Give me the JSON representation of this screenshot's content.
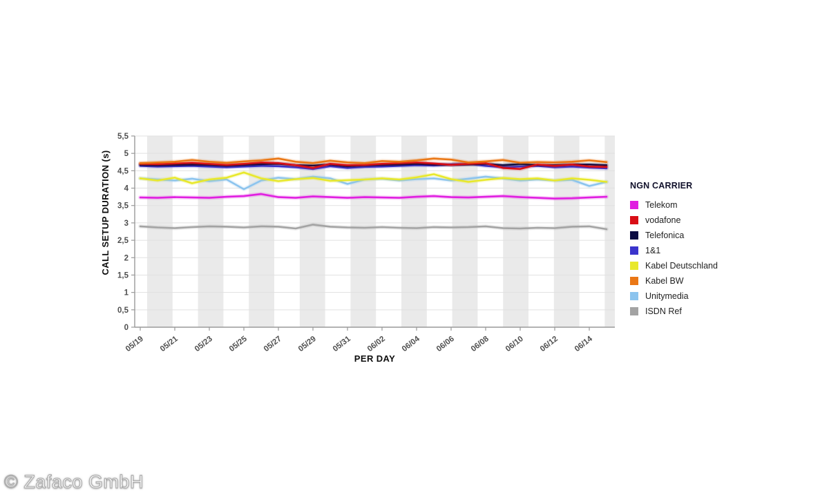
{
  "watermark": "© Zafaco GmbH",
  "chart_data": {
    "type": "line",
    "title": "",
    "xlabel": "PER DAY",
    "ylabel": "CALL SETUP DURATION (s)",
    "ylim": [
      0,
      5.5
    ],
    "ytick_step": 0.5,
    "ytick_labels": [
      "0",
      "0,5",
      "1",
      "1,5",
      "2",
      "2,5",
      "3",
      "3,5",
      "4",
      "4,5",
      "5",
      "5,5"
    ],
    "grid": true,
    "plot_band_color": "#eaeaea",
    "axis_color": "#999999",
    "legend_title": "NGN CARRIER",
    "legend_position": "right",
    "x": [
      "05/19",
      "05/20",
      "05/21",
      "05/22",
      "05/23",
      "05/24",
      "05/25",
      "05/26",
      "05/27",
      "05/28",
      "05/29",
      "05/30",
      "05/31",
      "06/01",
      "06/02",
      "06/03",
      "06/04",
      "06/05",
      "06/06",
      "06/07",
      "06/08",
      "06/09",
      "06/10",
      "06/11",
      "06/12",
      "06/13",
      "06/14",
      "06/15"
    ],
    "xtick_labels": [
      "05/19",
      "05/21",
      "05/23",
      "05/25",
      "05/27",
      "05/29",
      "05/31",
      "06/02",
      "06/04",
      "06/06",
      "06/08",
      "06/10",
      "06/12",
      "06/14"
    ],
    "series": [
      {
        "name": "Telekom",
        "color": "#E01EE0",
        "values": [
          3.73,
          3.72,
          3.74,
          3.73,
          3.72,
          3.75,
          3.77,
          3.83,
          3.74,
          3.72,
          3.76,
          3.74,
          3.72,
          3.74,
          3.73,
          3.72,
          3.75,
          3.77,
          3.74,
          3.73,
          3.75,
          3.77,
          3.74,
          3.72,
          3.7,
          3.71,
          3.73,
          3.75
        ]
      },
      {
        "name": "vodafone",
        "color": "#D90E16",
        "values": [
          4.7,
          4.69,
          4.71,
          4.73,
          4.7,
          4.67,
          4.7,
          4.74,
          4.72,
          4.66,
          4.58,
          4.7,
          4.66,
          4.67,
          4.7,
          4.72,
          4.74,
          4.71,
          4.67,
          4.7,
          4.72,
          4.58,
          4.55,
          4.68,
          4.64,
          4.68,
          4.62,
          4.61
        ]
      },
      {
        "name": "Telefonica",
        "color": "#0B0B42",
        "values": [
          4.67,
          4.66,
          4.67,
          4.68,
          4.67,
          4.65,
          4.67,
          4.69,
          4.7,
          4.66,
          4.65,
          4.68,
          4.63,
          4.66,
          4.67,
          4.68,
          4.7,
          4.68,
          4.67,
          4.68,
          4.7,
          4.66,
          4.69,
          4.67,
          4.66,
          4.68,
          4.68,
          4.66
        ]
      },
      {
        "name": "1&1",
        "color": "#3A34CC",
        "values": [
          4.64,
          4.62,
          4.63,
          4.64,
          4.62,
          4.6,
          4.62,
          4.64,
          4.63,
          4.6,
          4.55,
          4.63,
          4.58,
          4.61,
          4.62,
          4.64,
          4.66,
          4.65,
          4.68,
          4.7,
          4.64,
          4.6,
          4.62,
          4.64,
          4.6,
          4.62,
          4.59,
          4.57
        ]
      },
      {
        "name": "Kabel Deutschland",
        "color": "#E8E82A",
        "values": [
          4.28,
          4.22,
          4.3,
          4.14,
          4.25,
          4.3,
          4.45,
          4.28,
          4.2,
          4.26,
          4.29,
          4.21,
          4.23,
          4.25,
          4.28,
          4.25,
          4.31,
          4.4,
          4.26,
          4.18,
          4.24,
          4.29,
          4.26,
          4.28,
          4.22,
          4.28,
          4.24,
          4.18
        ]
      },
      {
        "name": "Kabel BW",
        "color": "#EA7715",
        "values": [
          4.72,
          4.74,
          4.76,
          4.81,
          4.76,
          4.73,
          4.77,
          4.8,
          4.85,
          4.76,
          4.72,
          4.79,
          4.74,
          4.72,
          4.78,
          4.76,
          4.8,
          4.85,
          4.82,
          4.74,
          4.77,
          4.81,
          4.73,
          4.75,
          4.74,
          4.76,
          4.8,
          4.75
        ]
      },
      {
        "name": "Unitymedia",
        "color": "#8CC4EE",
        "values": [
          4.28,
          4.25,
          4.22,
          4.27,
          4.2,
          4.25,
          3.97,
          4.22,
          4.3,
          4.26,
          4.33,
          4.28,
          4.12,
          4.25,
          4.27,
          4.22,
          4.26,
          4.28,
          4.22,
          4.27,
          4.33,
          4.28,
          4.22,
          4.25,
          4.22,
          4.24,
          4.06,
          4.18
        ]
      },
      {
        "name": "ISDN Ref",
        "color": "#A3A3A3",
        "values": [
          2.9,
          2.87,
          2.85,
          2.88,
          2.9,
          2.89,
          2.87,
          2.9,
          2.89,
          2.84,
          2.95,
          2.89,
          2.87,
          2.86,
          2.88,
          2.86,
          2.85,
          2.88,
          2.87,
          2.88,
          2.9,
          2.85,
          2.84,
          2.86,
          2.85,
          2.89,
          2.9,
          2.82
        ]
      }
    ]
  }
}
